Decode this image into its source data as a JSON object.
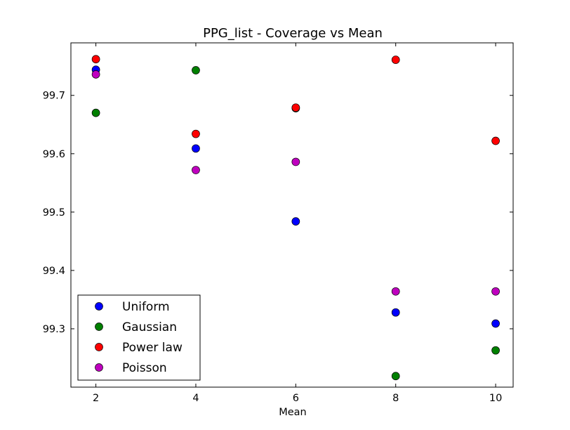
{
  "chart_data": {
    "type": "scatter",
    "title": "PPG_list - Coverage vs Mean",
    "xlabel": "Mean",
    "ylabel": "",
    "xlim": [
      1.5,
      10.35
    ],
    "ylim": [
      99.2,
      99.79
    ],
    "xticks": [
      2,
      4,
      6,
      8,
      10
    ],
    "yticks": [
      99.3,
      99.4,
      99.5,
      99.6,
      99.7
    ],
    "xtick_labels": [
      "2",
      "4",
      "6",
      "8",
      "10"
    ],
    "ytick_labels": [
      "99.3",
      "99.4",
      "99.5",
      "99.6",
      "99.7"
    ],
    "grid": false,
    "legend_position": "lower-left",
    "series": [
      {
        "name": "Uniform",
        "color": "#0000ff",
        "x": [
          2,
          4,
          6,
          8,
          10
        ],
        "y": [
          99.744,
          99.609,
          99.484,
          99.328,
          99.309
        ]
      },
      {
        "name": "Gaussian",
        "color": "#008000",
        "x": [
          2,
          4,
          6,
          8,
          10
        ],
        "y": [
          99.67,
          99.743,
          99.678,
          99.219,
          99.263
        ]
      },
      {
        "name": "Power law",
        "color": "#ff0000",
        "x": [
          2,
          4,
          6,
          8,
          10
        ],
        "y": [
          99.762,
          99.634,
          99.679,
          99.761,
          99.622
        ]
      },
      {
        "name": "Poisson",
        "color": "#bf00bf",
        "x": [
          2,
          4,
          6,
          8,
          10
        ],
        "y": [
          99.736,
          99.572,
          99.586,
          99.364,
          99.364
        ]
      }
    ]
  }
}
